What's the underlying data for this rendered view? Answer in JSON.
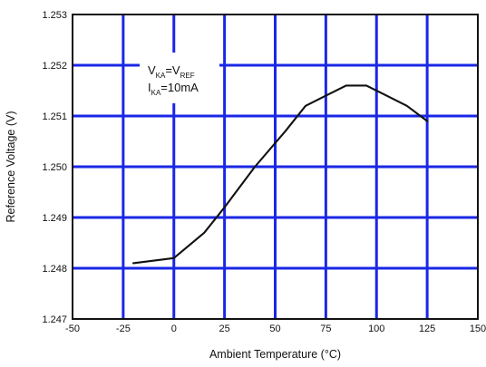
{
  "chart_data": {
    "type": "line",
    "xlabel": "Ambient Temperature (°C)",
    "ylabel": "Reference Voltage (V)",
    "xlim": [
      -50,
      150
    ],
    "ylim": [
      1.247,
      1.253
    ],
    "x_ticks": [
      -50,
      -25,
      0,
      25,
      50,
      75,
      100,
      125,
      150
    ],
    "y_ticks": [
      1.247,
      1.248,
      1.249,
      1.25,
      1.251,
      1.252,
      1.253
    ],
    "x_tick_labels": [
      "-50",
      "-25",
      "0",
      "25",
      "50",
      "75",
      "100",
      "125",
      "150"
    ],
    "y_tick_labels": [
      "1.247",
      "1.248",
      "1.249",
      "1.250",
      "1.251",
      "1.252",
      "1.253"
    ],
    "grid": true,
    "annotation": {
      "line1": {
        "v1": "V",
        "sub1": "KA",
        "eq": "=V",
        "sub2": "REF"
      },
      "line2": {
        "v1": "I",
        "sub1": "KA",
        "eq": "=10mA"
      }
    },
    "series": [
      {
        "x": [
          -20,
          0,
          15,
          25,
          40,
          55,
          65,
          75,
          85,
          95,
          105,
          115,
          125
        ],
        "y": [
          1.2481,
          1.2482,
          1.2487,
          1.2492,
          1.25,
          1.2507,
          1.2512,
          1.2514,
          1.2516,
          1.2516,
          1.2514,
          1.2512,
          1.2509
        ]
      }
    ],
    "baseline_marker": {
      "x": [
        -40,
        -20
      ],
      "y": [
        1.248,
        1.248
      ]
    },
    "colors": {
      "grid": "#1a27e6",
      "line": "#111111",
      "frame": "#111111",
      "background": "#ffffff"
    }
  }
}
